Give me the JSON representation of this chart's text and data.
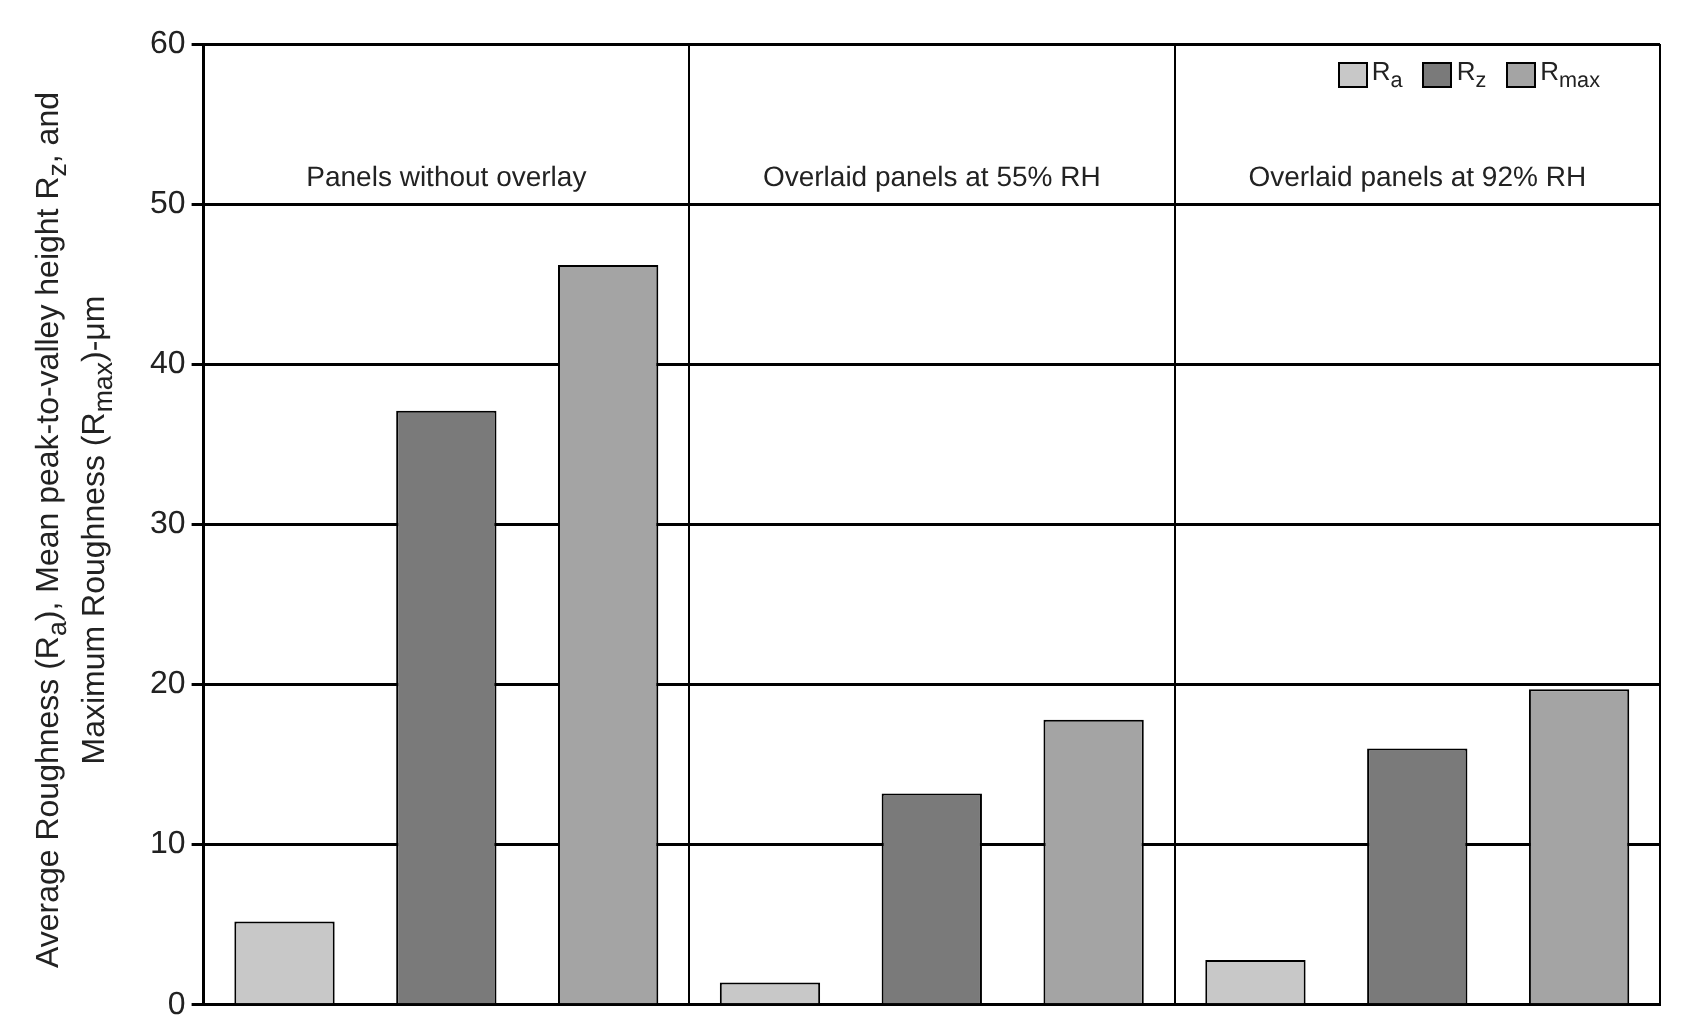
{
  "chart_data": {
    "type": "bar",
    "ylabel": "Average Roughness (R$_{a}$), Mean peak-to-valley height R$_{z}$, and Maximum Roughness (R$_{max}$)-μm",
    "categories": [
      "Panels without overlay",
      "Overlaid panels at 55% RH",
      "Overlaid panels at 92% RH"
    ],
    "series": [
      {
        "name": "R$_{a}$",
        "color": "#c8c8c8",
        "values": [
          5.2,
          1.4,
          2.8
        ]
      },
      {
        "name": "R$_{z}$",
        "color": "#7a7a7a",
        "values": [
          37.1,
          13.2,
          16.0
        ]
      },
      {
        "name": "R$_{max}$",
        "color": "#a4a4a4",
        "values": [
          46.2,
          17.8,
          19.7
        ]
      }
    ],
    "ylim": [
      0,
      60
    ],
    "yticks": [
      0,
      10,
      20,
      30,
      40,
      50,
      60
    ],
    "grid": true,
    "legend": "top right"
  }
}
